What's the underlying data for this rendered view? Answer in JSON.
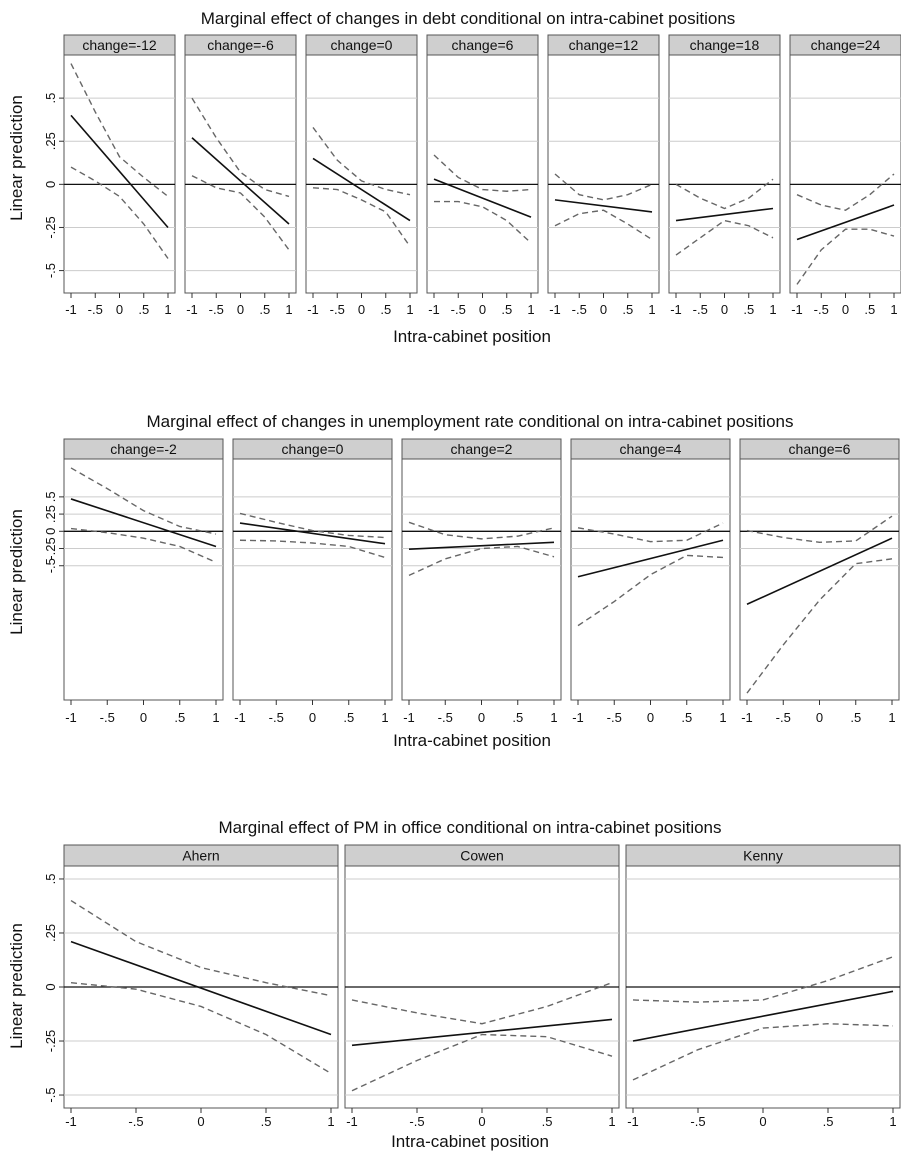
{
  "chart_data": [
    {
      "type": "line",
      "title": "Marginal effect of changes in debt conditional on intra-cabinet positions",
      "xlabel": "Intra-cabinet position",
      "ylabel": "Linear prediction",
      "xlim": [
        -1,
        1
      ],
      "ylim": [
        -0.63,
        0.75
      ],
      "x_ticks": [
        -1,
        -0.5,
        0,
        0.5,
        1
      ],
      "x_tick_labels": [
        "-1",
        "-.5",
        "0",
        ".5",
        "1"
      ],
      "y_ticks": [
        -0.5,
        -0.25,
        0,
        0.25,
        0.5
      ],
      "y_tick_labels": [
        "-.5",
        "-.25",
        "0",
        ".25",
        ".5"
      ],
      "grid": true,
      "panels": [
        {
          "label": "change=-12",
          "x": [
            -1,
            1
          ],
          "estimate": [
            0.4,
            -0.25
          ],
          "x_ci": [
            -1,
            -0.5,
            0,
            0.5,
            1
          ],
          "upper": [
            0.7,
            0.42,
            0.16,
            0.04,
            -0.07
          ],
          "lower": [
            0.1,
            0.02,
            -0.07,
            -0.23,
            -0.43
          ]
        },
        {
          "label": "change=-6",
          "x": [
            -1,
            1
          ],
          "estimate": [
            0.27,
            -0.23
          ],
          "x_ci": [
            -1,
            -0.5,
            0,
            0.5,
            1
          ],
          "upper": [
            0.5,
            0.27,
            0.07,
            -0.03,
            -0.07
          ],
          "lower": [
            0.05,
            -0.02,
            -0.05,
            -0.19,
            -0.38
          ]
        },
        {
          "label": "change=0",
          "x": [
            -1,
            1
          ],
          "estimate": [
            0.15,
            -0.21
          ],
          "x_ci": [
            -1,
            -0.5,
            0,
            0.5,
            1
          ],
          "upper": [
            0.33,
            0.14,
            0.02,
            -0.03,
            -0.06
          ],
          "lower": [
            -0.02,
            -0.03,
            -0.09,
            -0.16,
            -0.36
          ]
        },
        {
          "label": "change=6",
          "x": [
            -1,
            1
          ],
          "estimate": [
            0.03,
            -0.19
          ],
          "x_ci": [
            -1,
            -0.5,
            0,
            0.5,
            1
          ],
          "upper": [
            0.17,
            0.04,
            -0.03,
            -0.04,
            -0.03
          ],
          "lower": [
            -0.1,
            -0.1,
            -0.13,
            -0.21,
            -0.34
          ]
        },
        {
          "label": "change=12",
          "x": [
            -1,
            1
          ],
          "estimate": [
            -0.09,
            -0.16
          ],
          "x_ci": [
            -1,
            -0.5,
            0,
            0.5,
            1
          ],
          "upper": [
            0.06,
            -0.06,
            -0.09,
            -0.06,
            0.0
          ],
          "lower": [
            -0.24,
            -0.17,
            -0.15,
            -0.23,
            -0.32
          ]
        },
        {
          "label": "change=18",
          "x": [
            -1,
            1
          ],
          "estimate": [
            -0.21,
            -0.14
          ],
          "x_ci": [
            -1,
            -0.5,
            0,
            0.5,
            1
          ],
          "upper": [
            0.0,
            -0.08,
            -0.14,
            -0.08,
            0.03
          ],
          "lower": [
            -0.41,
            -0.31,
            -0.21,
            -0.24,
            -0.31
          ]
        },
        {
          "label": "change=24",
          "x": [
            -1,
            1
          ],
          "estimate": [
            -0.32,
            -0.12
          ],
          "x_ci": [
            -1,
            -0.5,
            0,
            0.5,
            1
          ],
          "upper": [
            -0.06,
            -0.12,
            -0.15,
            -0.06,
            0.06
          ],
          "lower": [
            -0.58,
            -0.38,
            -0.26,
            -0.26,
            -0.3
          ]
        }
      ]
    },
    {
      "type": "line",
      "title": "Marginal effect of changes in unemployment rate conditional on intra-cabinet positions",
      "xlabel": "Intra-cabinet position",
      "ylabel": "Linear prediction",
      "xlim": [
        -1,
        1
      ],
      "ylim": [
        -2.45,
        1.05
      ],
      "x_ticks": [
        -1,
        -0.5,
        0,
        0.5,
        1
      ],
      "x_tick_labels": [
        "-1",
        "-.5",
        "0",
        ".5",
        "1"
      ],
      "y_ticks": [
        -0.5,
        -0.25,
        0,
        0.25,
        0.5
      ],
      "y_tick_labels": [
        "-.5",
        "-.25",
        "0",
        ".25",
        ".5"
      ],
      "grid": true,
      "panels": [
        {
          "label": "change=-2",
          "x": [
            -1,
            1
          ],
          "estimate": [
            0.47,
            -0.22
          ],
          "x_ci": [
            -1,
            -0.5,
            0,
            0.5,
            1
          ],
          "upper": [
            0.92,
            0.62,
            0.3,
            0.07,
            -0.04
          ],
          "lower": [
            0.04,
            -0.02,
            -0.1,
            -0.22,
            -0.45
          ]
        },
        {
          "label": "change=0",
          "x": [
            -1,
            1
          ],
          "estimate": [
            0.12,
            -0.18
          ],
          "x_ci": [
            -1,
            -0.5,
            0,
            0.5,
            1
          ],
          "upper": [
            0.26,
            0.13,
            0.01,
            -0.06,
            -0.09
          ],
          "lower": [
            -0.13,
            -0.14,
            -0.17,
            -0.22,
            -0.38
          ]
        },
        {
          "label": "change=2",
          "x": [
            -1,
            1
          ],
          "estimate": [
            -0.26,
            -0.16
          ],
          "x_ci": [
            -1,
            -0.5,
            0,
            0.5,
            1
          ],
          "upper": [
            0.13,
            -0.05,
            -0.11,
            -0.07,
            0.05
          ],
          "lower": [
            -0.64,
            -0.4,
            -0.25,
            -0.22,
            -0.37
          ]
        },
        {
          "label": "change=4",
          "x": [
            -1,
            1
          ],
          "estimate": [
            -0.66,
            -0.13
          ],
          "x_ci": [
            -1,
            -0.5,
            0,
            0.5,
            1
          ],
          "upper": [
            0.05,
            -0.04,
            -0.15,
            -0.13,
            0.12
          ],
          "lower": [
            -1.37,
            -1.02,
            -0.63,
            -0.35,
            -0.38
          ]
        },
        {
          "label": "change=6",
          "x": [
            -1,
            1
          ],
          "estimate": [
            -1.06,
            -0.1
          ],
          "x_ci": [
            -1,
            -0.5,
            0,
            0.5,
            1
          ],
          "upper": [
            0.01,
            -0.09,
            -0.16,
            -0.14,
            0.22
          ],
          "lower": [
            -2.35,
            -1.65,
            -1.0,
            -0.47,
            -0.4
          ]
        }
      ]
    },
    {
      "type": "line",
      "title": "Marginal effect of PM in office conditional on intra-cabinet positions",
      "xlabel": "Intra-cabinet position",
      "ylabel": "Linear prediction",
      "xlim": [
        -1,
        1
      ],
      "ylim": [
        -0.56,
        0.56
      ],
      "x_ticks": [
        -1,
        -0.5,
        0,
        0.5,
        1
      ],
      "x_tick_labels": [
        "-1",
        "-.5",
        "0",
        ".5",
        "1"
      ],
      "y_ticks": [
        -0.5,
        -0.25,
        0,
        0.25,
        0.5
      ],
      "y_tick_labels": [
        "-.5",
        "-.25",
        "0",
        ".25",
        ".5"
      ],
      "grid": true,
      "panels": [
        {
          "label": "Ahern",
          "x": [
            -1,
            1
          ],
          "estimate": [
            0.21,
            -0.22
          ],
          "x_ci": [
            -1,
            -0.5,
            0,
            0.5,
            1
          ],
          "upper": [
            0.4,
            0.21,
            0.09,
            0.02,
            -0.04
          ],
          "lower": [
            0.02,
            -0.01,
            -0.09,
            -0.22,
            -0.4
          ]
        },
        {
          "label": "Cowen",
          "x": [
            -1,
            1
          ],
          "estimate": [
            -0.27,
            -0.15
          ],
          "x_ci": [
            -1,
            -0.5,
            0,
            0.5,
            1
          ],
          "upper": [
            -0.06,
            -0.12,
            -0.17,
            -0.09,
            0.02
          ],
          "lower": [
            -0.48,
            -0.34,
            -0.22,
            -0.23,
            -0.32
          ]
        },
        {
          "label": "Kenny",
          "x": [
            -1,
            1
          ],
          "estimate": [
            -0.25,
            -0.02
          ],
          "x_ci": [
            -1,
            -0.5,
            0,
            0.5,
            1
          ],
          "upper": [
            -0.06,
            -0.07,
            -0.06,
            0.03,
            0.14
          ],
          "lower": [
            -0.43,
            -0.29,
            -0.19,
            -0.17,
            -0.18
          ]
        }
      ]
    }
  ]
}
